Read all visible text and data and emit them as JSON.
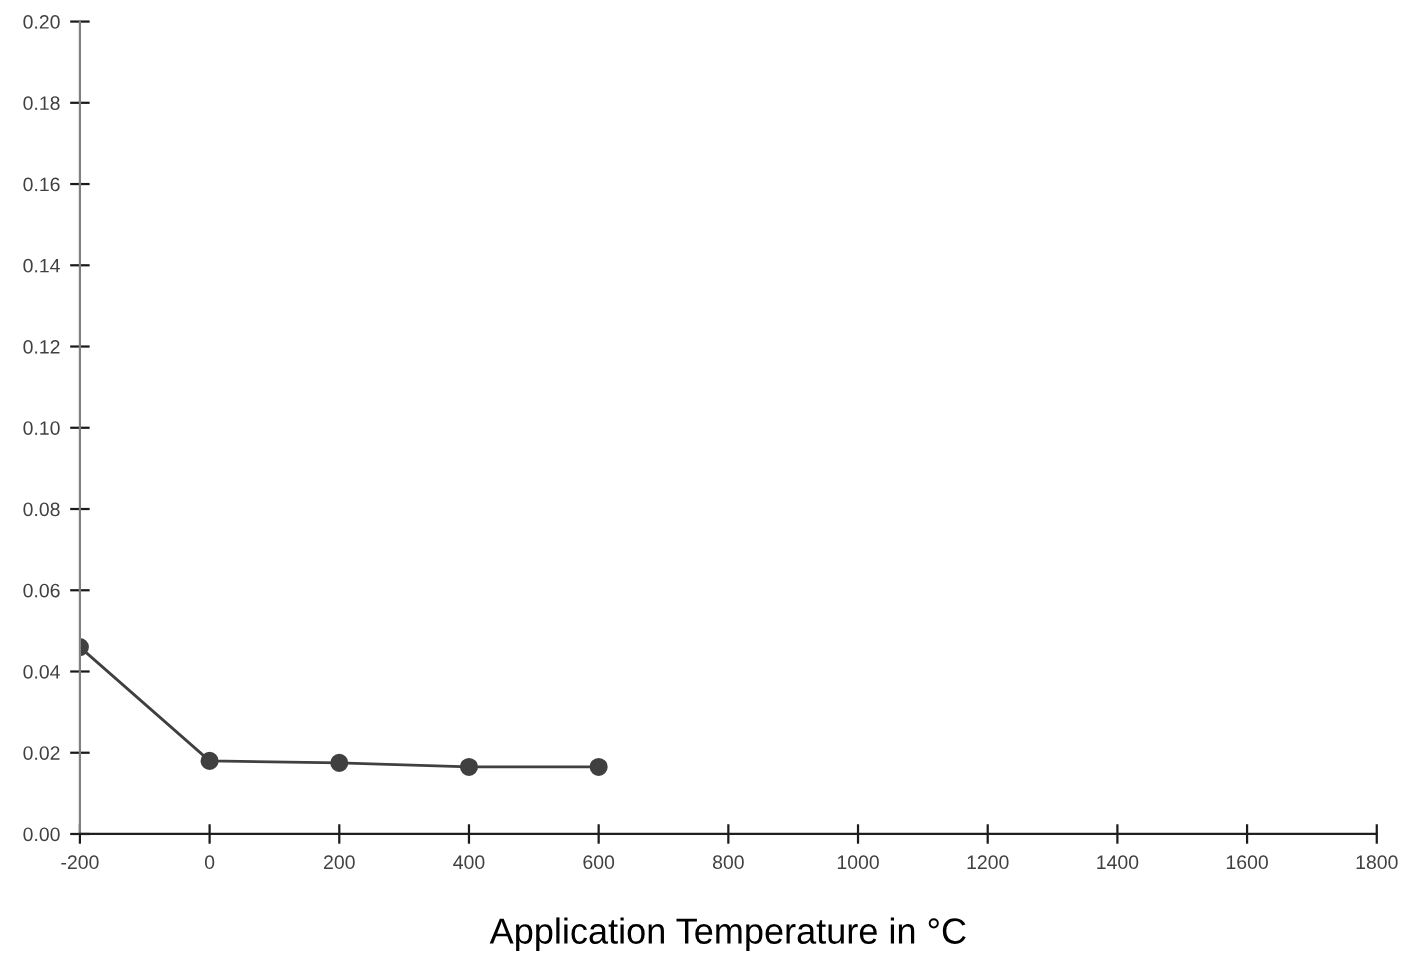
{
  "chart_data": {
    "type": "line",
    "xlabel": "Application Temperature in °C",
    "x": [
      -200,
      0,
      200,
      400,
      600
    ],
    "series": [
      {
        "color": "#404040",
        "values": [
          0.046,
          0.018,
          0.0175,
          0.0165,
          0.0165
        ]
      }
    ],
    "xlim": [
      -200,
      1800
    ],
    "xticks": [
      -200,
      0,
      200,
      400,
      600,
      800,
      1000,
      1200,
      1400,
      1600,
      1800
    ],
    "ylim": [
      0,
      0.2
    ],
    "yticks": [
      {
        "value": 0,
        "label": "0.00"
      },
      {
        "value": 0.02,
        "label": "0.02"
      },
      {
        "value": 0.04,
        "label": "0.04"
      },
      {
        "value": 0.06,
        "label": "0.06"
      },
      {
        "value": 0.08,
        "label": "0.08"
      },
      {
        "value": 0.1,
        "label": "0.10"
      },
      {
        "value": 0.12,
        "label": "0.12"
      },
      {
        "value": 0.14,
        "label": "0.14"
      },
      {
        "value": 0.16,
        "label": "0.16"
      },
      {
        "value": 0.18,
        "label": "0.18"
      },
      {
        "value": 0.2,
        "label": "0.20"
      }
    ],
    "grid": false,
    "marker": "circle",
    "line_style": "solid"
  }
}
